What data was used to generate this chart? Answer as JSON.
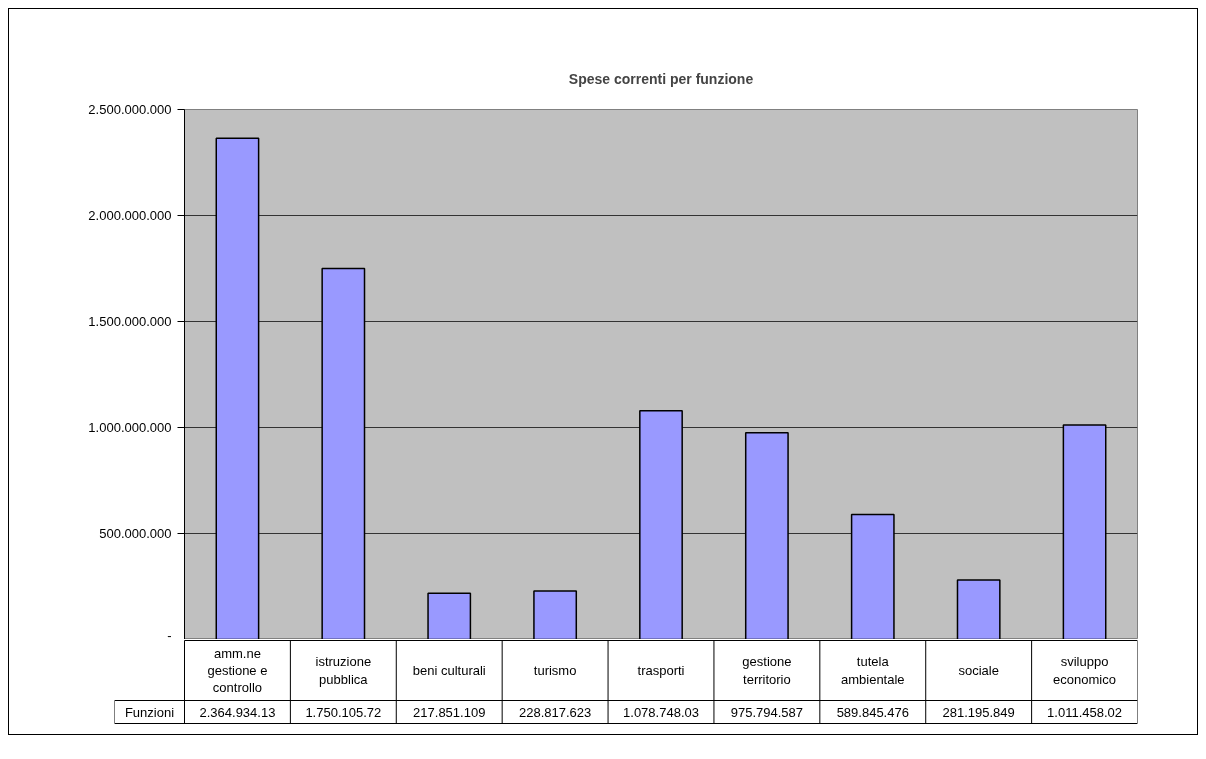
{
  "chart_data": {
    "type": "bar",
    "title": "Spese correnti per funzione",
    "categories": [
      "amm.ne gestione e controllo",
      "istruzione pubblica",
      "beni culturali",
      "turismo",
      "trasporti",
      "gestione territorio",
      "tutela ambientale",
      "sociale",
      "sviluppo economico"
    ],
    "series": [
      {
        "name": "Funzioni",
        "color": "#9999ff",
        "values": [
          2364934130,
          1750105720,
          217851109,
          228817623,
          1078748030,
          975794587,
          589845476,
          281195849,
          1011458020
        ],
        "value_labels": [
          "2.364.934.13",
          "1.750.105.72",
          "217.851.109",
          "228.817.623",
          "1.078.748.03",
          "975.794.587",
          "589.845.476",
          "281.195.849",
          "1.011.458.02"
        ]
      }
    ],
    "ylim": [
      0,
      2500000000
    ],
    "yticks": [
      {
        "value": 0,
        "label": "-"
      },
      {
        "value": 500000000,
        "label": "500.000.000"
      },
      {
        "value": 1000000000,
        "label": "1.000.000.000"
      },
      {
        "value": 1500000000,
        "label": "1.500.000.000"
      },
      {
        "value": 2000000000,
        "label": "2.000.000.000"
      },
      {
        "value": 2500000000,
        "label": "2.500.000.000"
      }
    ],
    "grid": "y"
  }
}
